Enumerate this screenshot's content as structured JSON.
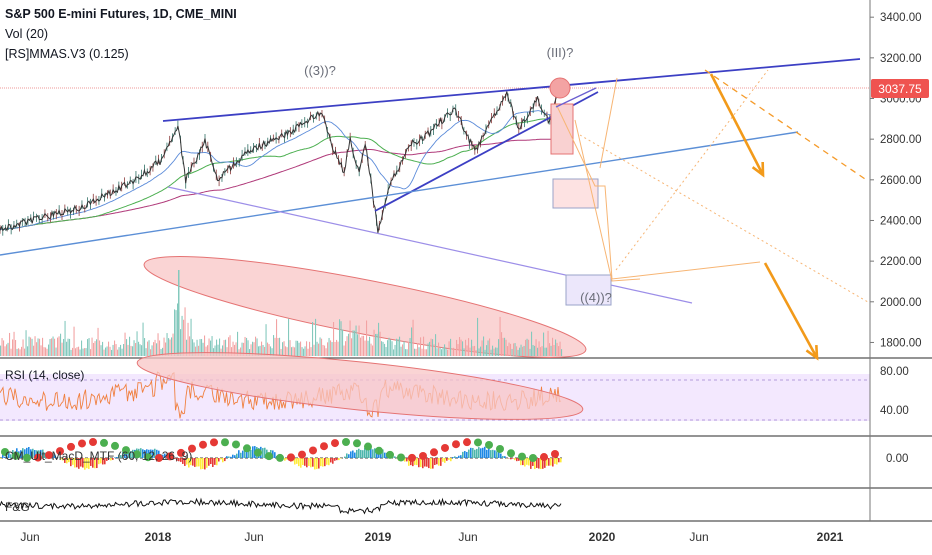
{
  "chart_data": {
    "type": "line",
    "title": "S&P 500 E-mini Futures, 1D, CME_MINI",
    "legend": [
      "Vol (20)",
      "[RS]MMAS.V3 (0.125)"
    ],
    "last_price": "3037.75",
    "x_ticks": [
      "Jun",
      "2018",
      "Jun",
      "2019",
      "Jun",
      "2020",
      "Jun",
      "2021"
    ],
    "price_axis": {
      "ticks": [
        "3400.00",
        "3200.00",
        "3000.00",
        "2800.00",
        "2600.00",
        "2400.00",
        "2200.00",
        "2000.00",
        "1800.00"
      ],
      "ylim": [
        1700,
        3450
      ]
    },
    "series": [
      {
        "name": "S&P 500 E-mini Futures",
        "x": [
          "2017-04-01",
          "2017-05-15",
          "2017-07-01",
          "2017-08-15",
          "2017-10-01",
          "2017-11-15",
          "2018-01-01",
          "2018-01-26",
          "2018-02-08",
          "2018-03-12",
          "2018-04-02",
          "2018-05-15",
          "2018-06-15",
          "2018-07-15",
          "2018-08-15",
          "2018-09-20",
          "2018-10-10",
          "2018-10-29",
          "2018-11-08",
          "2018-11-23",
          "2018-12-03",
          "2018-12-24",
          "2019-01-15",
          "2019-02-15",
          "2019-03-15",
          "2019-04-30",
          "2019-06-03",
          "2019-07-26",
          "2019-08-15",
          "2019-09-15",
          "2019-10-03",
          "2019-10-20"
        ],
        "values": [
          2350,
          2390,
          2430,
          2460,
          2530,
          2600,
          2700,
          2870,
          2600,
          2790,
          2600,
          2720,
          2770,
          2810,
          2860,
          2935,
          2760,
          2640,
          2800,
          2630,
          2790,
          2350,
          2590,
          2770,
          2820,
          2950,
          2740,
          3020,
          2850,
          3000,
          2890,
          3040
        ]
      }
    ],
    "annotations": [
      "((3))?",
      "(III)?",
      "((4))?"
    ],
    "panels": [
      {
        "name": "RSI (14, close)",
        "ticks": [
          "80.00",
          "40.00"
        ]
      },
      {
        "name": "CM_Ult_MacD_MTF (60, 12, 26, 9)",
        "ticks": [
          "0.00"
        ]
      },
      {
        "name": "F&G",
        "ticks": []
      }
    ]
  }
}
